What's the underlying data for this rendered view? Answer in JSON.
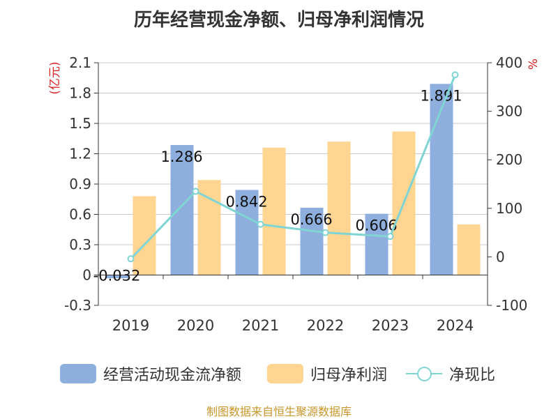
{
  "title": "历年经营现金净额、归母净利润情况",
  "source": "制图数据来自恒生聚源数据库",
  "legend": [
    {
      "name": "经营活动现金流净额",
      "color": "#8eaedd",
      "kind": "bar"
    },
    {
      "name": "归母净利润",
      "color": "#ffd591",
      "kind": "bar"
    },
    {
      "name": "净现比",
      "color": "#7fd4d4",
      "kind": "line"
    }
  ],
  "chart_data": {
    "type": "bar",
    "categories": [
      "2019",
      "2020",
      "2021",
      "2022",
      "2023",
      "2024"
    ],
    "series": [
      {
        "name": "经营活动现金流净额",
        "axis": "left",
        "color": "#8eaedd",
        "values": [
          -0.032,
          1.286,
          0.842,
          0.666,
          0.606,
          1.891
        ],
        "labels": [
          "-0.032",
          "1.286",
          "0.842",
          "0.666",
          "0.606",
          "1.891"
        ]
      },
      {
        "name": "归母净利润",
        "axis": "left",
        "color": "#ffd591",
        "values": [
          0.78,
          0.94,
          1.26,
          1.32,
          1.42,
          0.5
        ]
      },
      {
        "name": "净现比",
        "axis": "right",
        "type": "line",
        "color": "#7fd4d4",
        "values": [
          -4,
          135,
          67,
          50,
          42,
          375
        ]
      }
    ],
    "left_axis": {
      "label": "(亿元)",
      "label_color": "#dd2222",
      "min": -0.3,
      "max": 2.1,
      "ticks": [
        "-0.3",
        "0",
        "0.3",
        "0.6",
        "0.9",
        "1.2",
        "1.5",
        "1.8",
        "2.1"
      ]
    },
    "right_axis": {
      "label": "%",
      "label_color": "#dd2222",
      "min": -100,
      "max": 400,
      "ticks": [
        "-100",
        "0",
        "100",
        "200",
        "300",
        "400"
      ]
    },
    "grid": true
  }
}
